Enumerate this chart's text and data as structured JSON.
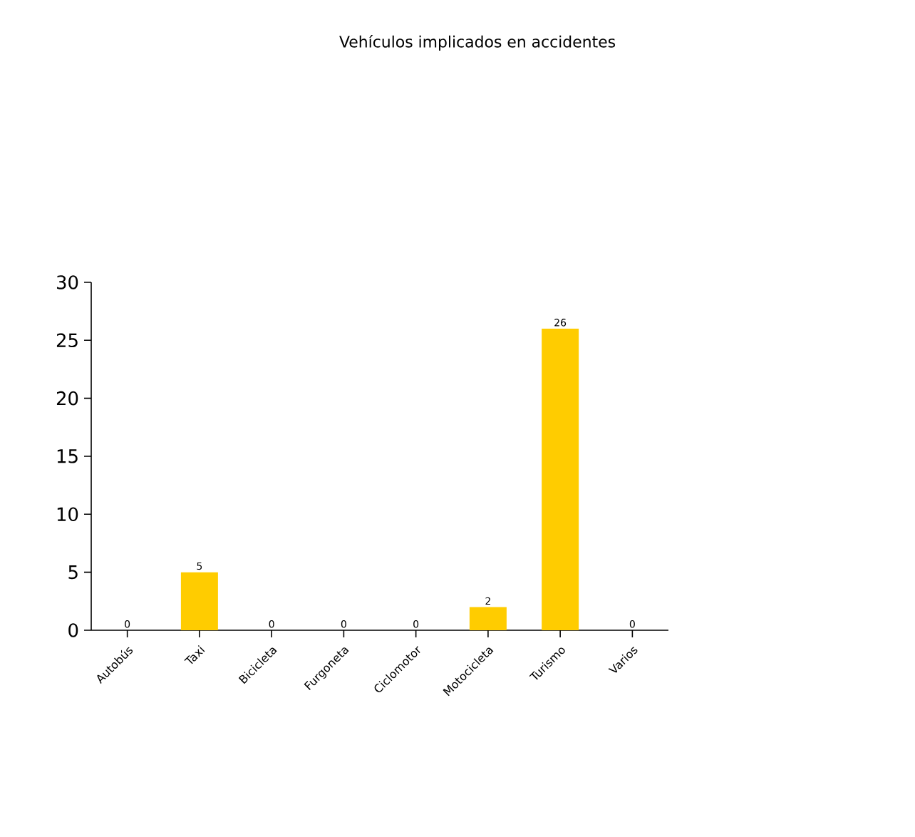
{
  "chart_data": {
    "type": "bar",
    "title": "Vehículos implicados en accidentes",
    "categories": [
      "Autobús",
      "Taxi",
      "Bicicleta",
      "Furgoneta",
      "Ciclomotor",
      "Motocicleta",
      "Turismo",
      "Varios"
    ],
    "values": [
      0,
      5,
      0,
      0,
      0,
      2,
      26,
      0
    ],
    "color": "#ffcc00",
    "ylim": [
      0,
      30
    ],
    "yticks": [
      0,
      5,
      10,
      15,
      20,
      25,
      30
    ],
    "grid": false,
    "data_labels": true
  }
}
